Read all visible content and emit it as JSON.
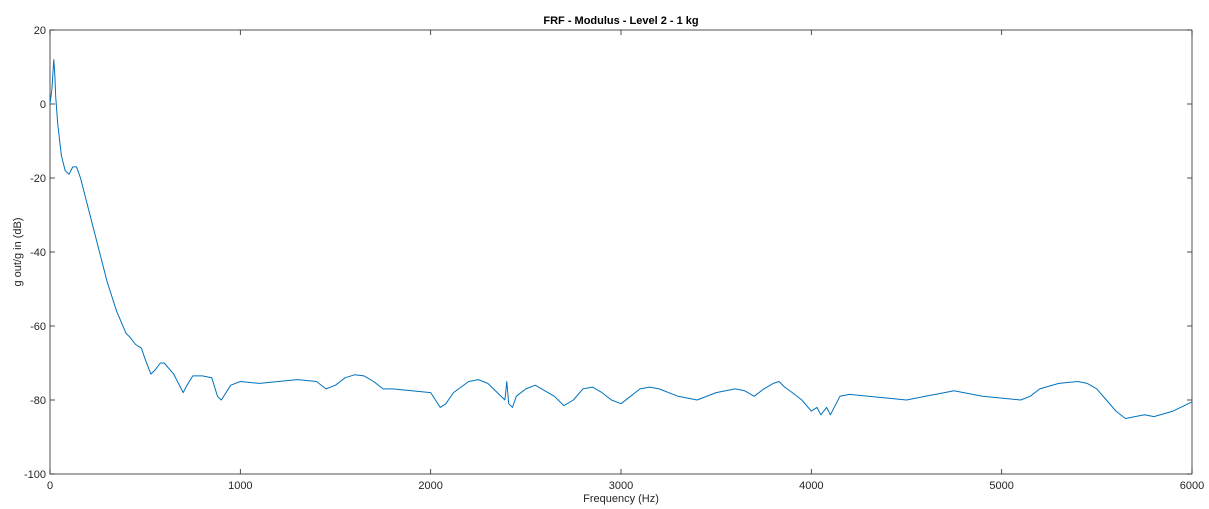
{
  "chart_data": {
    "type": "line",
    "title": "FRF - Modulus - Level 2 - 1 kg",
    "xlabel": "Frequency (Hz)",
    "ylabel": "g out/g in (dB)",
    "xlim": [
      0,
      6000
    ],
    "ylim": [
      -100,
      20
    ],
    "xticks": [
      0,
      1000,
      2000,
      3000,
      4000,
      5000,
      6000
    ],
    "yticks": [
      -100,
      -80,
      -60,
      -40,
      -20,
      0,
      20
    ],
    "grid": false,
    "legend": "none",
    "series": [
      {
        "color": "#0072bd",
        "x": [
          0,
          10,
          20,
          25,
          30,
          40,
          60,
          80,
          100,
          120,
          140,
          160,
          200,
          250,
          300,
          350,
          400,
          420,
          450,
          480,
          500,
          530,
          550,
          580,
          600,
          650,
          700,
          720,
          750,
          800,
          850,
          880,
          900,
          950,
          1000,
          1100,
          1200,
          1300,
          1400,
          1450,
          1500,
          1550,
          1600,
          1650,
          1700,
          1750,
          1800,
          1900,
          2000,
          2050,
          2080,
          2120,
          2200,
          2250,
          2300,
          2350,
          2390,
          2400,
          2410,
          2430,
          2450,
          2500,
          2550,
          2600,
          2650,
          2700,
          2750,
          2800,
          2850,
          2900,
          2950,
          3000,
          3050,
          3100,
          3150,
          3200,
          3300,
          3400,
          3500,
          3550,
          3600,
          3650,
          3700,
          3750,
          3800,
          3830,
          3860,
          3900,
          3950,
          4000,
          4030,
          4050,
          4080,
          4100,
          4150,
          4200,
          4300,
          4400,
          4500,
          4600,
          4700,
          4750,
          4800,
          4900,
          5000,
          5100,
          5150,
          5200,
          5300,
          5400,
          5450,
          5500,
          5550,
          5600,
          5650,
          5700,
          5750,
          5800,
          5900,
          6000
        ],
        "y": [
          0,
          4,
          12,
          8,
          2,
          -5,
          -14,
          -18,
          -19,
          -17,
          -17,
          -20,
          -28,
          -38,
          -48,
          -56,
          -62,
          -63,
          -65,
          -66,
          -69,
          -73,
          -72,
          -70,
          -70,
          -73,
          -78,
          -76,
          -73.5,
          -73.5,
          -74,
          -79,
          -80,
          -76,
          -75,
          -75.5,
          -75,
          -74.5,
          -75,
          -77,
          -76,
          -74,
          -73.2,
          -73.5,
          -75,
          -77,
          -77,
          -77.5,
          -78,
          -82,
          -81,
          -78,
          -75,
          -74.5,
          -75.5,
          -78,
          -80,
          -75,
          -81,
          -82,
          -79,
          -77,
          -76,
          -77.5,
          -79,
          -81.5,
          -80,
          -77,
          -76.5,
          -78,
          -80,
          -81,
          -79,
          -77,
          -76.5,
          -77,
          -79,
          -80,
          -78,
          -77.5,
          -77,
          -77.5,
          -79,
          -77,
          -75.5,
          -75,
          -76.5,
          -78,
          -80,
          -83,
          -82,
          -84,
          -82,
          -84,
          -79,
          -78.5,
          -79,
          -79.5,
          -80,
          -79,
          -78,
          -77.5,
          -78,
          -79,
          -79.5,
          -80,
          -79,
          -77,
          -75.5,
          -75,
          -75.5,
          -77,
          -80,
          -83,
          -85,
          -84.5,
          -84,
          -84.5,
          -83,
          -80.5
        ]
      }
    ]
  }
}
